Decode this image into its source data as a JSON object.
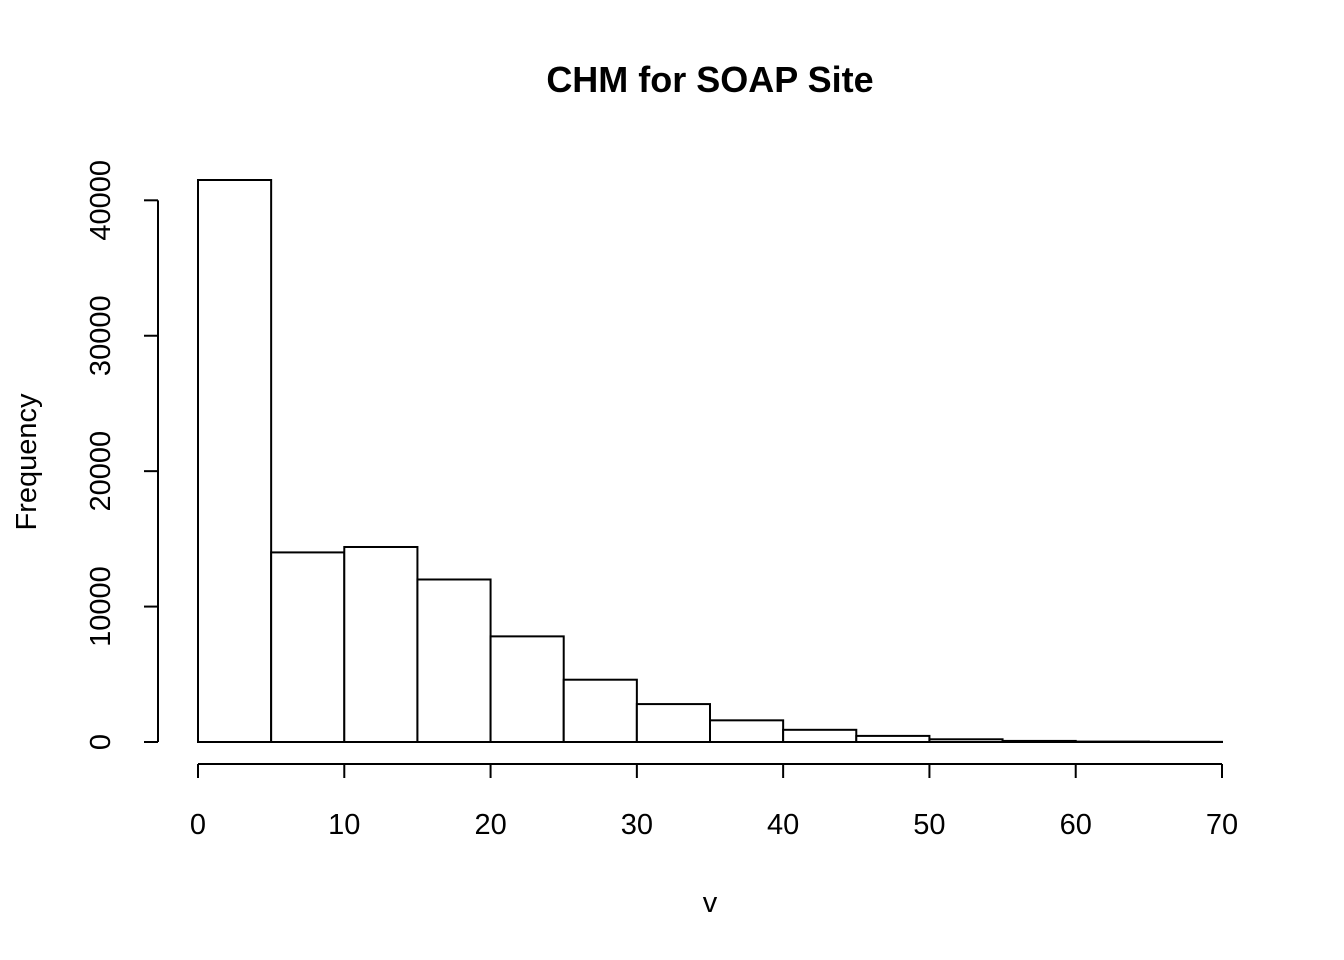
{
  "chart_data": {
    "type": "bar",
    "title": "CHM for SOAP Site",
    "xlabel": "v",
    "ylabel": "Frequency",
    "bins": [
      {
        "from": 0,
        "to": 5,
        "count": 41500
      },
      {
        "from": 5,
        "to": 10,
        "count": 14000
      },
      {
        "from": 10,
        "to": 15,
        "count": 14400
      },
      {
        "from": 15,
        "to": 20,
        "count": 12000
      },
      {
        "from": 20,
        "to": 25,
        "count": 7800
      },
      {
        "from": 25,
        "to": 30,
        "count": 4600
      },
      {
        "from": 30,
        "to": 35,
        "count": 2800
      },
      {
        "from": 35,
        "to": 40,
        "count": 1600
      },
      {
        "from": 40,
        "to": 45,
        "count": 900
      },
      {
        "from": 45,
        "to": 50,
        "count": 450
      },
      {
        "from": 50,
        "to": 55,
        "count": 200
      },
      {
        "from": 55,
        "to": 60,
        "count": 80
      },
      {
        "from": 60,
        "to": 65,
        "count": 30
      },
      {
        "from": 65,
        "to": 70,
        "count": 10
      }
    ],
    "xlim": [
      0,
      70
    ],
    "ylim": [
      0,
      41500
    ],
    "x_ticks": [
      "0",
      "10",
      "20",
      "30",
      "40",
      "50",
      "60",
      "70"
    ],
    "y_ticks": [
      "0",
      "10000",
      "20000",
      "30000",
      "40000"
    ],
    "grid": false,
    "bar_fill": "#ffffff",
    "bar_stroke": "#000000"
  }
}
